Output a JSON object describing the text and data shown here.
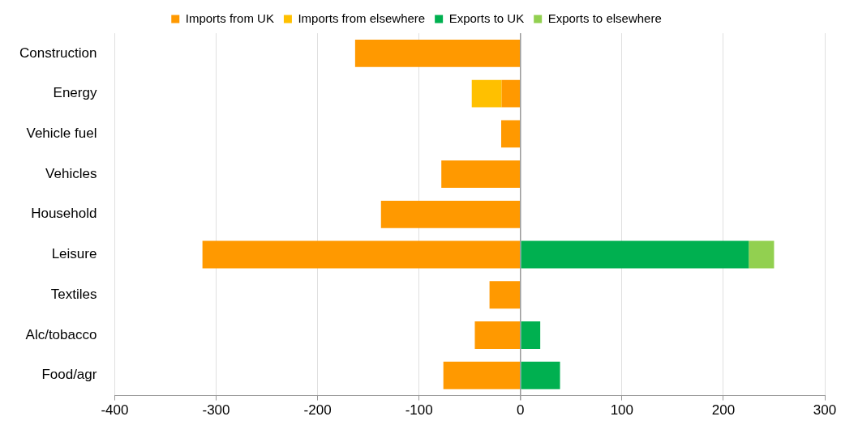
{
  "chart_data": {
    "type": "bar",
    "orientation": "horizontal",
    "stacked": true,
    "categories": [
      "Construction",
      "Energy",
      "Vehicle fuel",
      "Vehicles",
      "Household",
      "Leisure",
      "Textiles",
      "Alc/tobacco",
      "Food/agr"
    ],
    "series": [
      {
        "name": "Imports from UK",
        "color": "#ff9900",
        "values": [
          -163,
          -18.5,
          -19,
          -78,
          -137.5,
          -313.5,
          -30.5,
          -45,
          -76
        ]
      },
      {
        "name": "Imports from elsewhere",
        "color": "#ffc000",
        "values": [
          null,
          -29.5,
          null,
          null,
          null,
          null,
          null,
          null,
          null
        ]
      },
      {
        "name": "Exports to UK",
        "color": "#00b050",
        "values": [
          null,
          null,
          null,
          null,
          null,
          225,
          null,
          19.5,
          39
        ]
      },
      {
        "name": "Exports to elsewhere",
        "color": "#92d050",
        "values": [
          null,
          null,
          null,
          null,
          null,
          25,
          null,
          null,
          null
        ]
      }
    ],
    "xlim": [
      -400,
      300
    ],
    "xticks": [
      -400,
      -300,
      -200,
      -100,
      0,
      100,
      200,
      300
    ],
    "grid": "x",
    "legend": "top"
  }
}
